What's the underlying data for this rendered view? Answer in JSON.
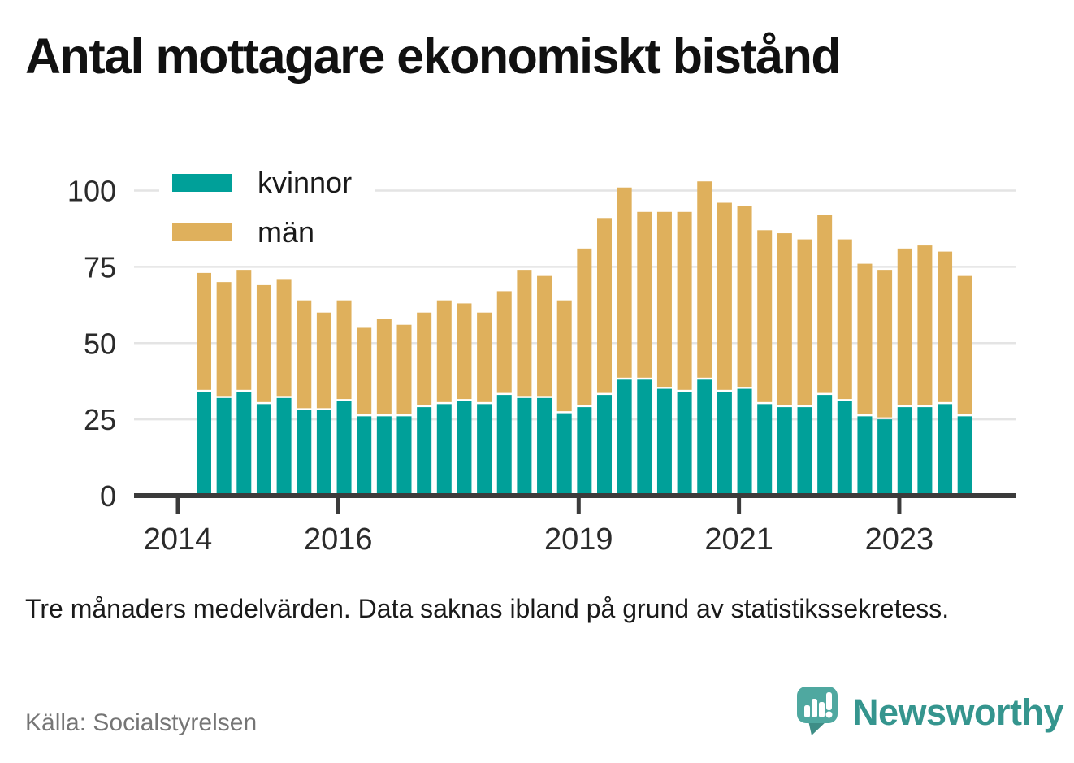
{
  "title": "Antal mottagare ekonomiskt bistånd",
  "subtitle": "Tre månaders medelvärden. Data saknas ibland på grund av statistikssekretess.",
  "source": "Källa: Socialstyrelsen",
  "brand": {
    "name": "Newsworthy",
    "color": "#35958E",
    "icon": "newsworthy-speech-bubble-chart-icon",
    "icon_color": "#4FA8A0",
    "icon_tail_color": "#3E8D86"
  },
  "chart_data": {
    "type": "bar",
    "stacked": true,
    "title": "Antal mottagare ekonomiskt bistånd",
    "xlabel": "",
    "ylabel": "",
    "ylim": [
      0,
      110
    ],
    "grid": true,
    "legend_position": "top-left",
    "y_ticks": [
      0,
      25,
      50,
      75,
      100
    ],
    "x_ticks": [
      2014,
      2016,
      2019,
      2021,
      2023
    ],
    "x": [
      "2014-Q2",
      "2014-Q3",
      "2014-Q4",
      "2015-Q1",
      "2015-Q2",
      "2015-Q3",
      "2015-Q4",
      "2016-Q1",
      "2016-Q2",
      "2016-Q3",
      "2016-Q4",
      "2017-Q1",
      "2017-Q2",
      "2017-Q3",
      "2017-Q4",
      "2018-Q1",
      "2018-Q2",
      "2018-Q3",
      "2018-Q4",
      "2019-Q1",
      "2019-Q2",
      "2019-Q3",
      "2019-Q4",
      "2020-Q1",
      "2020-Q2",
      "2020-Q3",
      "2020-Q4",
      "2021-Q1",
      "2021-Q2",
      "2021-Q3",
      "2021-Q4",
      "2022-Q1",
      "2022-Q2",
      "2022-Q3",
      "2022-Q4",
      "2023-Q1",
      "2023-Q2",
      "2023-Q3",
      "2023-Q4"
    ],
    "series": [
      {
        "name": "kvinnor",
        "color": "#00A099",
        "values": [
          34,
          32,
          34,
          30,
          32,
          28,
          28,
          31,
          26,
          26,
          26,
          29,
          30,
          31,
          30,
          33,
          32,
          32,
          27,
          29,
          33,
          38,
          38,
          35,
          34,
          38,
          34,
          35,
          30,
          29,
          29,
          33,
          31,
          26,
          25,
          29,
          29,
          30,
          26
        ]
      },
      {
        "name": "män",
        "color": "#DFB05C",
        "values": [
          39,
          38,
          40,
          39,
          39,
          36,
          32,
          33,
          29,
          32,
          30,
          31,
          34,
          32,
          30,
          34,
          42,
          40,
          37,
          52,
          58,
          63,
          55,
          58,
          59,
          65,
          62,
          60,
          57,
          57,
          55,
          59,
          53,
          50,
          49,
          52,
          53,
          50,
          46
        ]
      }
    ]
  }
}
